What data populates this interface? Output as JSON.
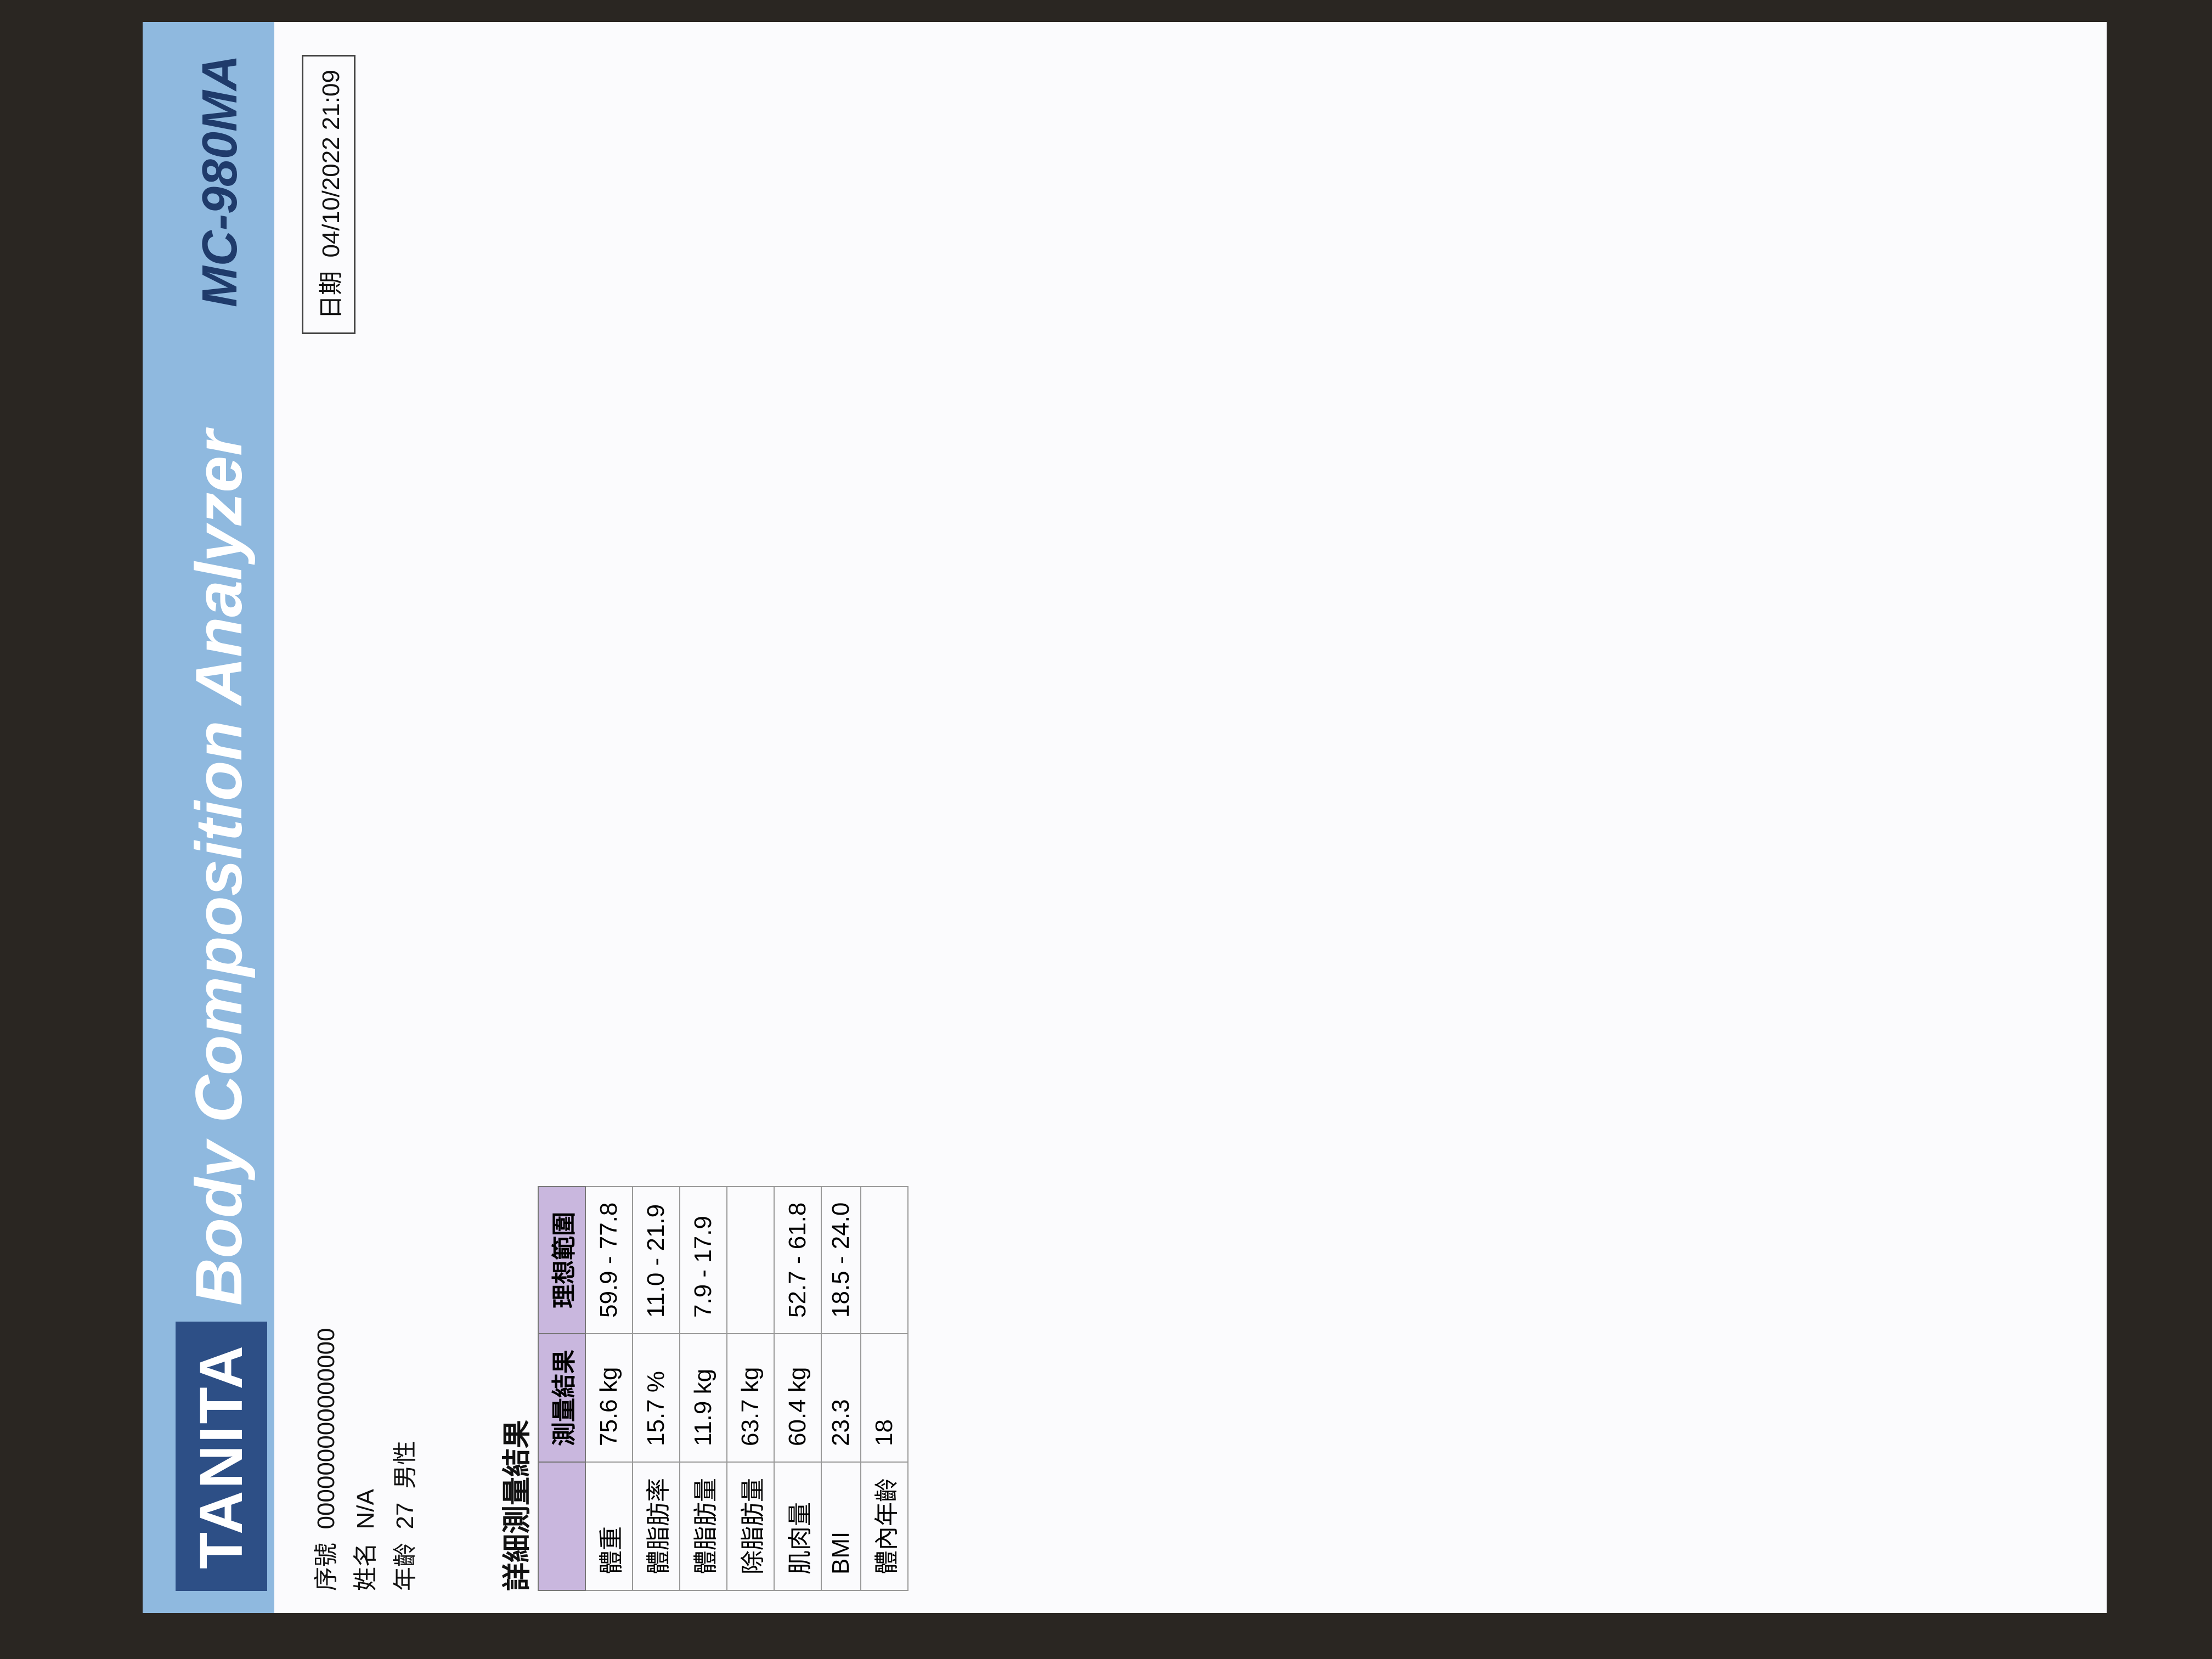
{
  "header": {
    "brand": "TANITA",
    "title": "Body Composition Analyzer",
    "model": "MC-980MA"
  },
  "info": {
    "id_label": "序號",
    "id": "000000000000000",
    "name_label": "姓名",
    "name": "N/A",
    "age_label": "年齡",
    "age": "27",
    "sex": "男性",
    "date_label": "日期",
    "date": "04/10/2022 21:09"
  },
  "section_results": "詳細測量結果",
  "results_headers": [
    "",
    "測量結果",
    "理想範圍"
  ],
  "results": [
    {
      "label": "體重",
      "value": "75.6",
      "unit": "kg",
      "range": "59.9 - 77.8"
    },
    {
      "label": "體脂肪率",
      "value": "15.7",
      "unit": "%",
      "range": "11.0 - 21.9"
    },
    {
      "label": "體脂肪量",
      "value": "11.9",
      "unit": "kg",
      "range": "7.9 - 17.9"
    },
    {
      "label": "除脂肪量",
      "value": "63.7",
      "unit": "kg",
      "range": ""
    },
    {
      "label": "肌肉量",
      "value": "60.4",
      "unit": "kg",
      "range": "52.7 - 61.8"
    },
    {
      "label": "BMI",
      "value": "23.3",
      "unit": "",
      "range": "18.5 - 24.0"
    },
    {
      "label": "體內年齡",
      "value": "18",
      "unit": "",
      "range": ""
    }
  ]
}
